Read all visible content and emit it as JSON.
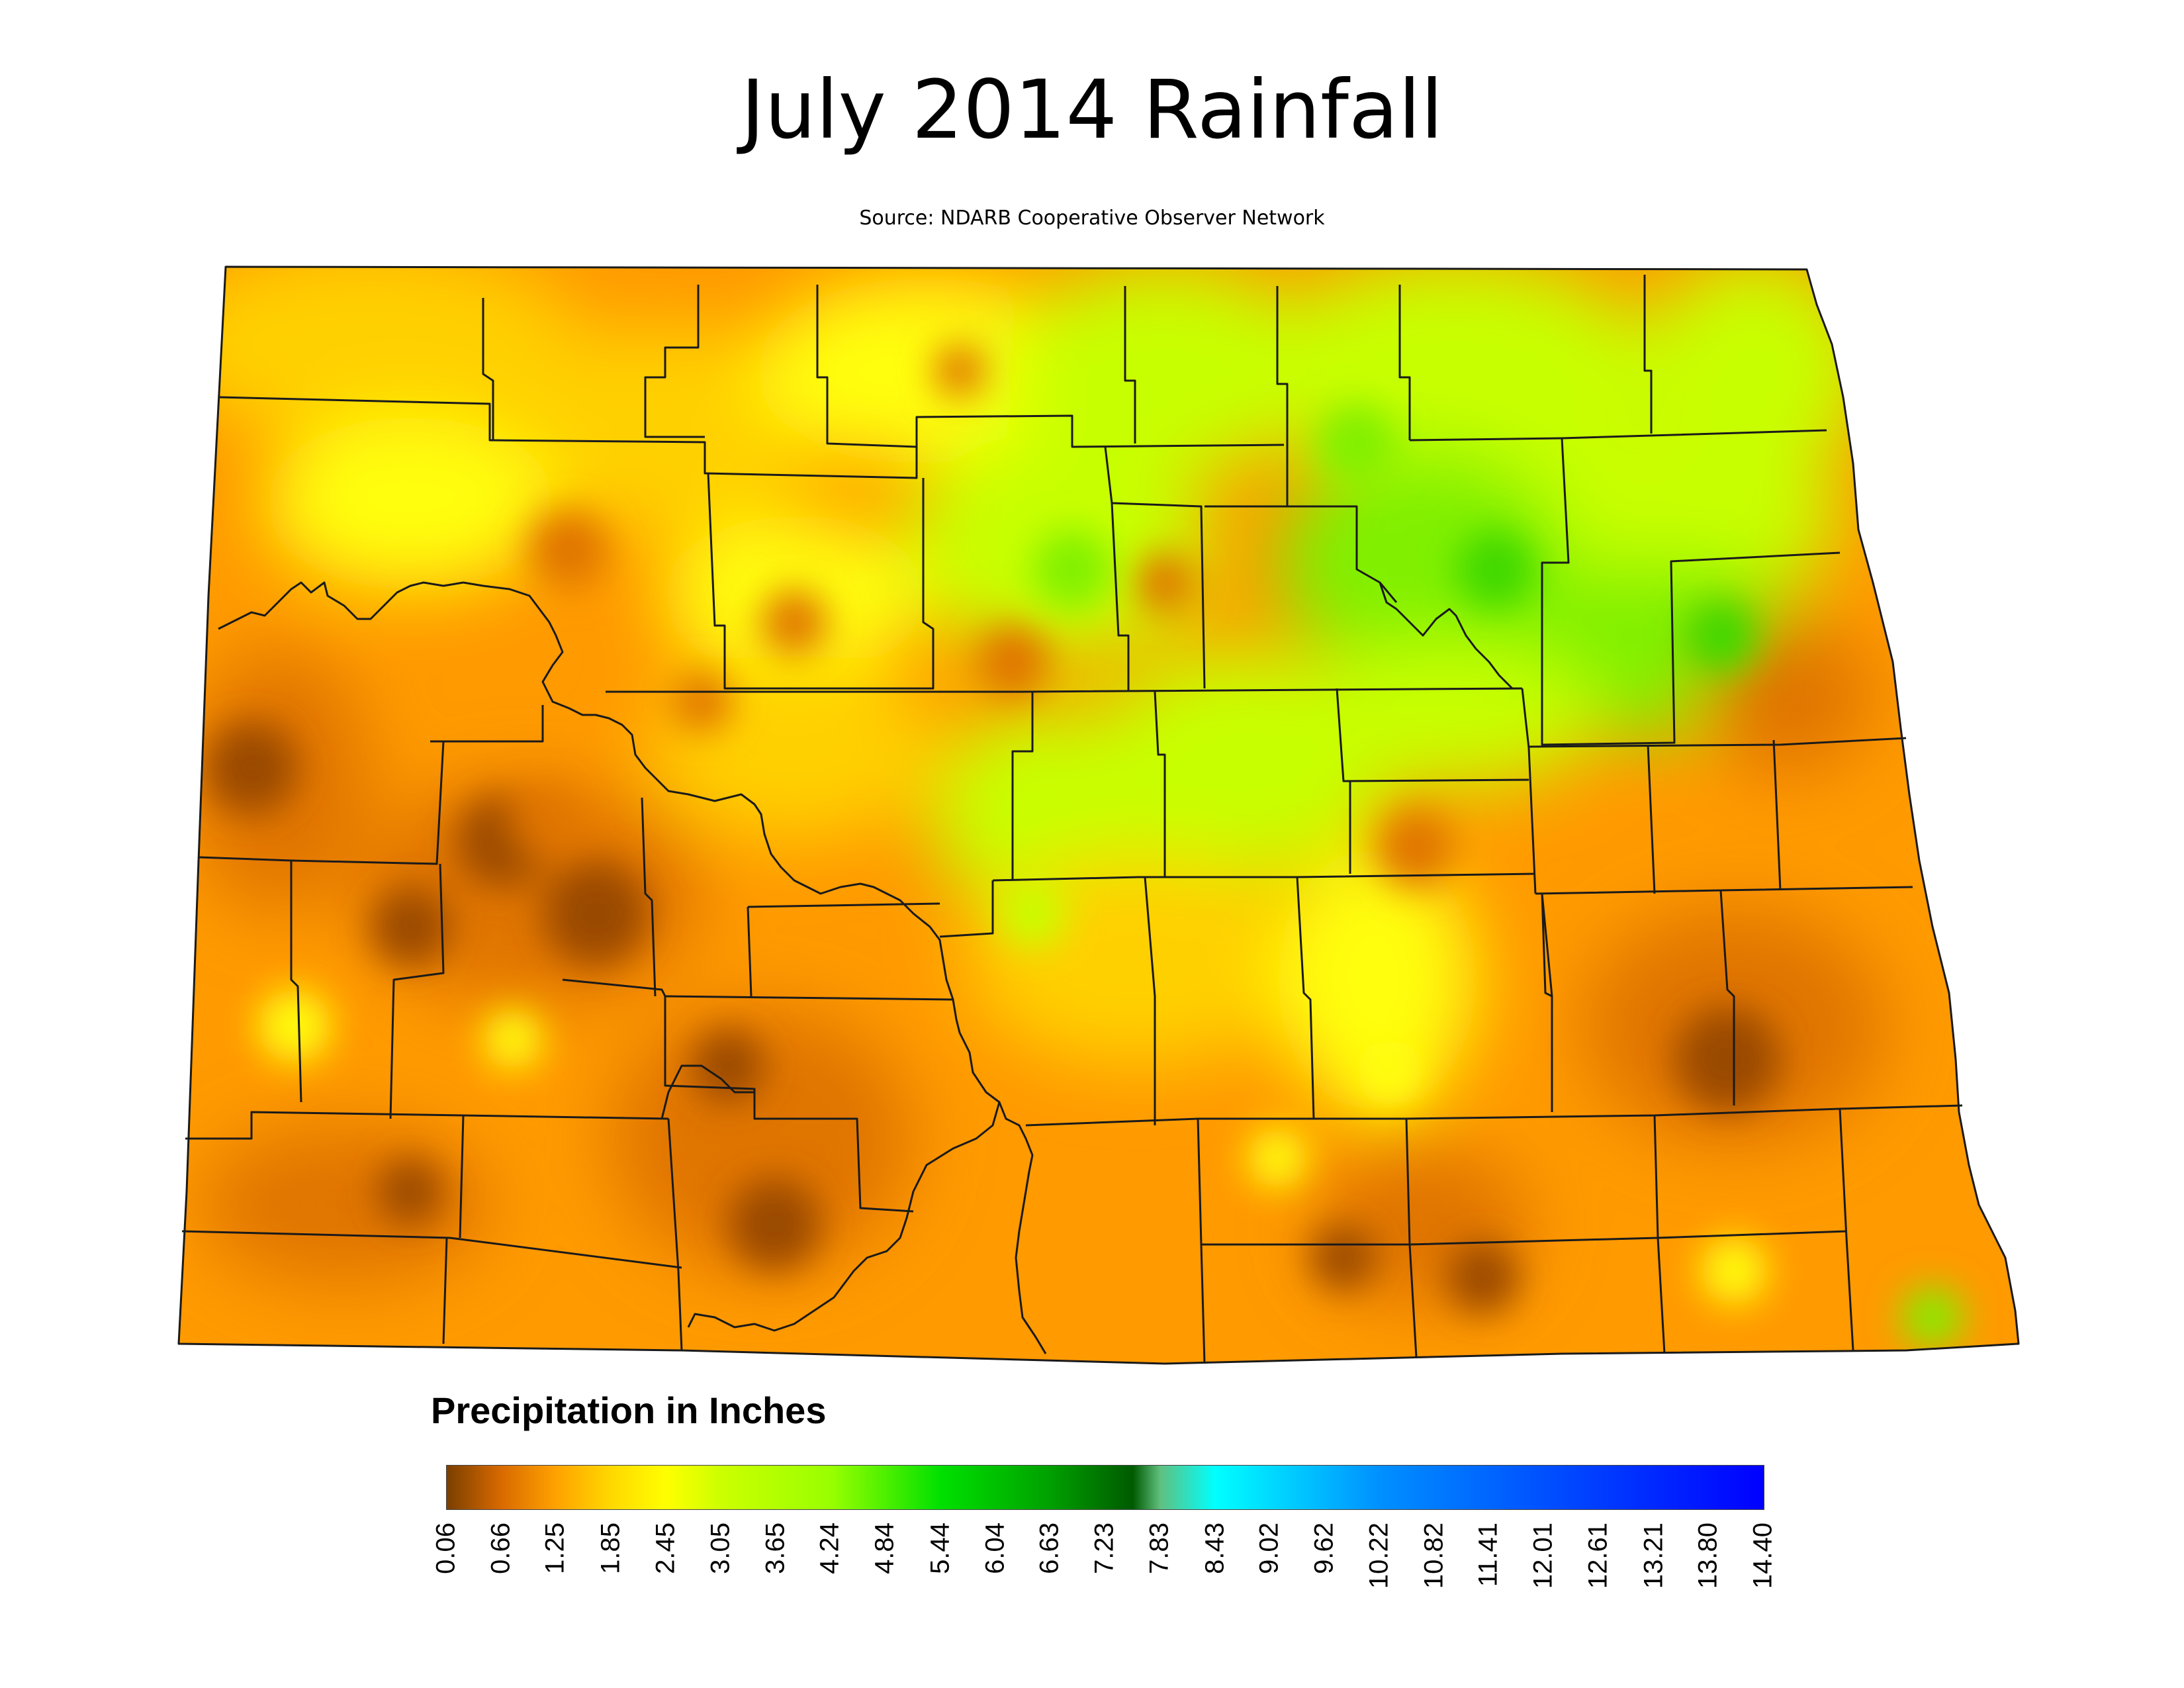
{
  "title": "July 2014 Rainfall",
  "subtitle": "Source: NDARB Cooperative Observer Network",
  "legend": {
    "title": "Precipitation in Inches",
    "ticks": [
      "0.06",
      "0.66",
      "1.25",
      "1.85",
      "2.45",
      "3.05",
      "3.65",
      "4.24",
      "4.84",
      "5.44",
      "6.04",
      "6.63",
      "7.23",
      "7.83",
      "8.43",
      "9.02",
      "9.62",
      "10.22",
      "10.82",
      "11.41",
      "12.01",
      "12.61",
      "13.21",
      "13.80",
      "14.40"
    ],
    "color_stops": [
      {
        "value": 0.06,
        "color": "#7a3f00"
      },
      {
        "value": 0.66,
        "color": "#d96a00"
      },
      {
        "value": 1.25,
        "color": "#ffa200"
      },
      {
        "value": 1.85,
        "color": "#ffd800"
      },
      {
        "value": 2.45,
        "color": "#ffff00"
      },
      {
        "value": 3.05,
        "color": "#ccff00"
      },
      {
        "value": 4.24,
        "color": "#99ff00"
      },
      {
        "value": 5.44,
        "color": "#00e000"
      },
      {
        "value": 6.63,
        "color": "#00a000"
      },
      {
        "value": 7.53,
        "color": "#005a00"
      },
      {
        "value": 7.83,
        "color": "#60c080"
      },
      {
        "value": 8.43,
        "color": "#00ffff"
      },
      {
        "value": 10.22,
        "color": "#0090ff"
      },
      {
        "value": 12.01,
        "color": "#0050ff"
      },
      {
        "value": 14.4,
        "color": "#0000ff"
      }
    ]
  },
  "map_colors": {
    "background": "#ff9a00",
    "dry_dark": "#9a4a00",
    "dry": "#e07400",
    "moderate": "#ffd000",
    "yellow": "#ffff10",
    "wet": "#c8ff00",
    "wetter": "#80f000",
    "wettest": "#40d800",
    "county_line": "#1a1a1a"
  }
}
